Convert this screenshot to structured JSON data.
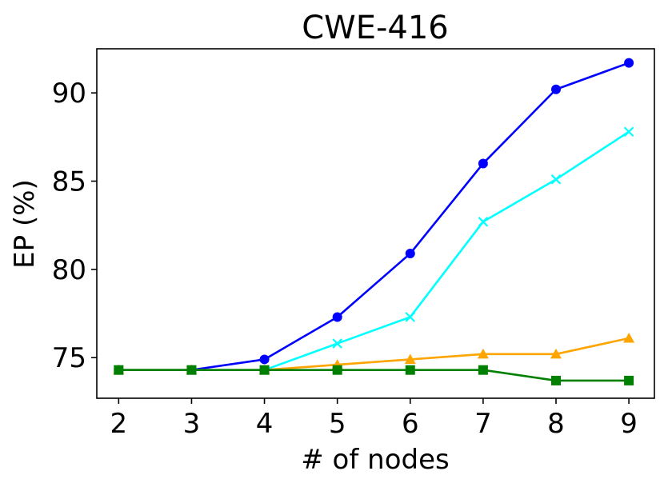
{
  "chart_data": {
    "type": "line",
    "title": "CWE-416",
    "xlabel": "# of nodes",
    "ylabel": "EP (%)",
    "x": [
      2,
      3,
      4,
      5,
      6,
      7,
      8,
      9
    ],
    "x_ticks": [
      "2",
      "3",
      "4",
      "5",
      "6",
      "7",
      "8",
      "9"
    ],
    "y_ticks": [
      "75",
      "80",
      "85",
      "90"
    ],
    "xlim": [
      1.7,
      9.35
    ],
    "ylim": [
      72.7,
      92.5
    ],
    "grid": false,
    "series": [
      {
        "color": "#0000ff",
        "marker": "circle",
        "values": [
          74.3,
          74.3,
          74.9,
          77.3,
          80.9,
          86.0,
          90.2,
          91.7
        ]
      },
      {
        "color": "#00ffff",
        "marker": "x",
        "values": [
          74.3,
          74.3,
          74.3,
          75.8,
          77.3,
          82.7,
          85.1,
          87.8
        ]
      },
      {
        "color": "#ffa500",
        "marker": "triangle",
        "values": [
          74.3,
          74.3,
          74.3,
          74.6,
          74.9,
          75.2,
          75.2,
          76.1
        ]
      },
      {
        "color": "#008000",
        "marker": "square",
        "values": [
          74.3,
          74.3,
          74.3,
          74.3,
          74.3,
          74.3,
          73.7,
          73.7
        ]
      }
    ]
  }
}
